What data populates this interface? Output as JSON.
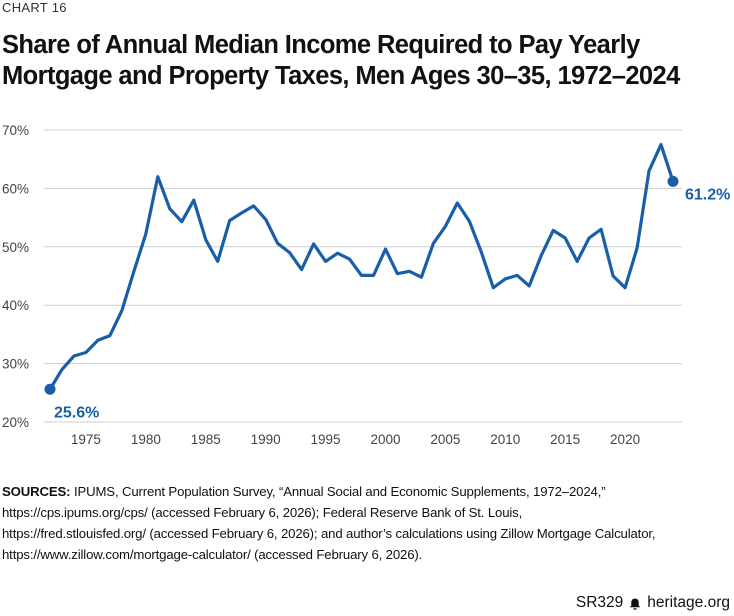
{
  "header": {
    "chart_number": "CHART 16",
    "title_line1": "Share of Annual Median Income Required to Pay Yearly",
    "title_line2": "Mortgage and Property Taxes, Men Ages 30–35, 1972–2024"
  },
  "sources": {
    "lead": "SOURCES:",
    "line1": "IPUMS, Current Population Survey, “Annual Social and Economic Supplements, 1972–2024,”",
    "line2": "https://cps.ipums.org/cps/ (accessed February 6, 2026); Federal Reserve Bank of St. Louis,",
    "line3": "https://fred.stlouisfed.org/ (accessed February 6, 2026); and author’s calculations using Zillow Mortgage Calculator,",
    "line4": "https://www.zillow.com/mortgage-calculator/ (accessed February 6, 2026)."
  },
  "footer": {
    "report_id": "SR329",
    "site": "heritage.org",
    "icon": "bell-icon"
  },
  "chart_data": {
    "type": "line",
    "title": "Share of Annual Median Income Required to Pay Yearly Mortgage and Property Taxes, Men Ages 30–35, 1972–2024",
    "xlabel": "",
    "ylabel": "",
    "xlim": [
      1972,
      2024
    ],
    "ylim": [
      20,
      70
    ],
    "x_ticks": [
      1975,
      1980,
      1985,
      1990,
      1995,
      2000,
      2005,
      2010,
      2015,
      2020
    ],
    "y_ticks": [
      20,
      30,
      40,
      50,
      60,
      70
    ],
    "y_tick_labels": [
      "20%",
      "30%",
      "40%",
      "50%",
      "60%",
      "70%"
    ],
    "grid": "horizontal",
    "color": "#1a5ea8",
    "series": [
      {
        "x": [
          1972,
          1973,
          1974,
          1975,
          1976,
          1977,
          1978,
          1979,
          1980,
          1981,
          1982,
          1983,
          1984,
          1985,
          1986,
          1987,
          1988,
          1989,
          1990,
          1991,
          1992,
          1993,
          1994,
          1995,
          1996,
          1997,
          1998,
          1999,
          2000,
          2001,
          2002,
          2003,
          2004,
          2005,
          2006,
          2007,
          2008,
          2009,
          2010,
          2011,
          2012,
          2013,
          2014,
          2015,
          2016,
          2017,
          2018,
          2019,
          2020,
          2021,
          2022,
          2023,
          2024
        ],
        "values": [
          25.6,
          29.0,
          31.3,
          31.9,
          34.0,
          34.8,
          39.1,
          45.8,
          52.2,
          62.0,
          56.5,
          54.3,
          58.0,
          51.2,
          47.5,
          54.5,
          55.8,
          57.0,
          54.7,
          50.6,
          49.0,
          46.1,
          50.5,
          47.5,
          48.9,
          47.9,
          45.1,
          45.1,
          49.6,
          45.4,
          45.8,
          44.8,
          50.6,
          53.5,
          57.5,
          54.4,
          49.1,
          43.0,
          44.5,
          45.1,
          43.3,
          48.5,
          52.8,
          51.5,
          47.5,
          51.5,
          53.0,
          45.0,
          43.0,
          49.8,
          63.0,
          67.5,
          61.2
        ]
      }
    ],
    "annotations": [
      {
        "x": 1972,
        "value": 25.6,
        "label": "25.6%"
      },
      {
        "x": 2024,
        "value": 61.2,
        "label": "61.2%"
      }
    ]
  }
}
